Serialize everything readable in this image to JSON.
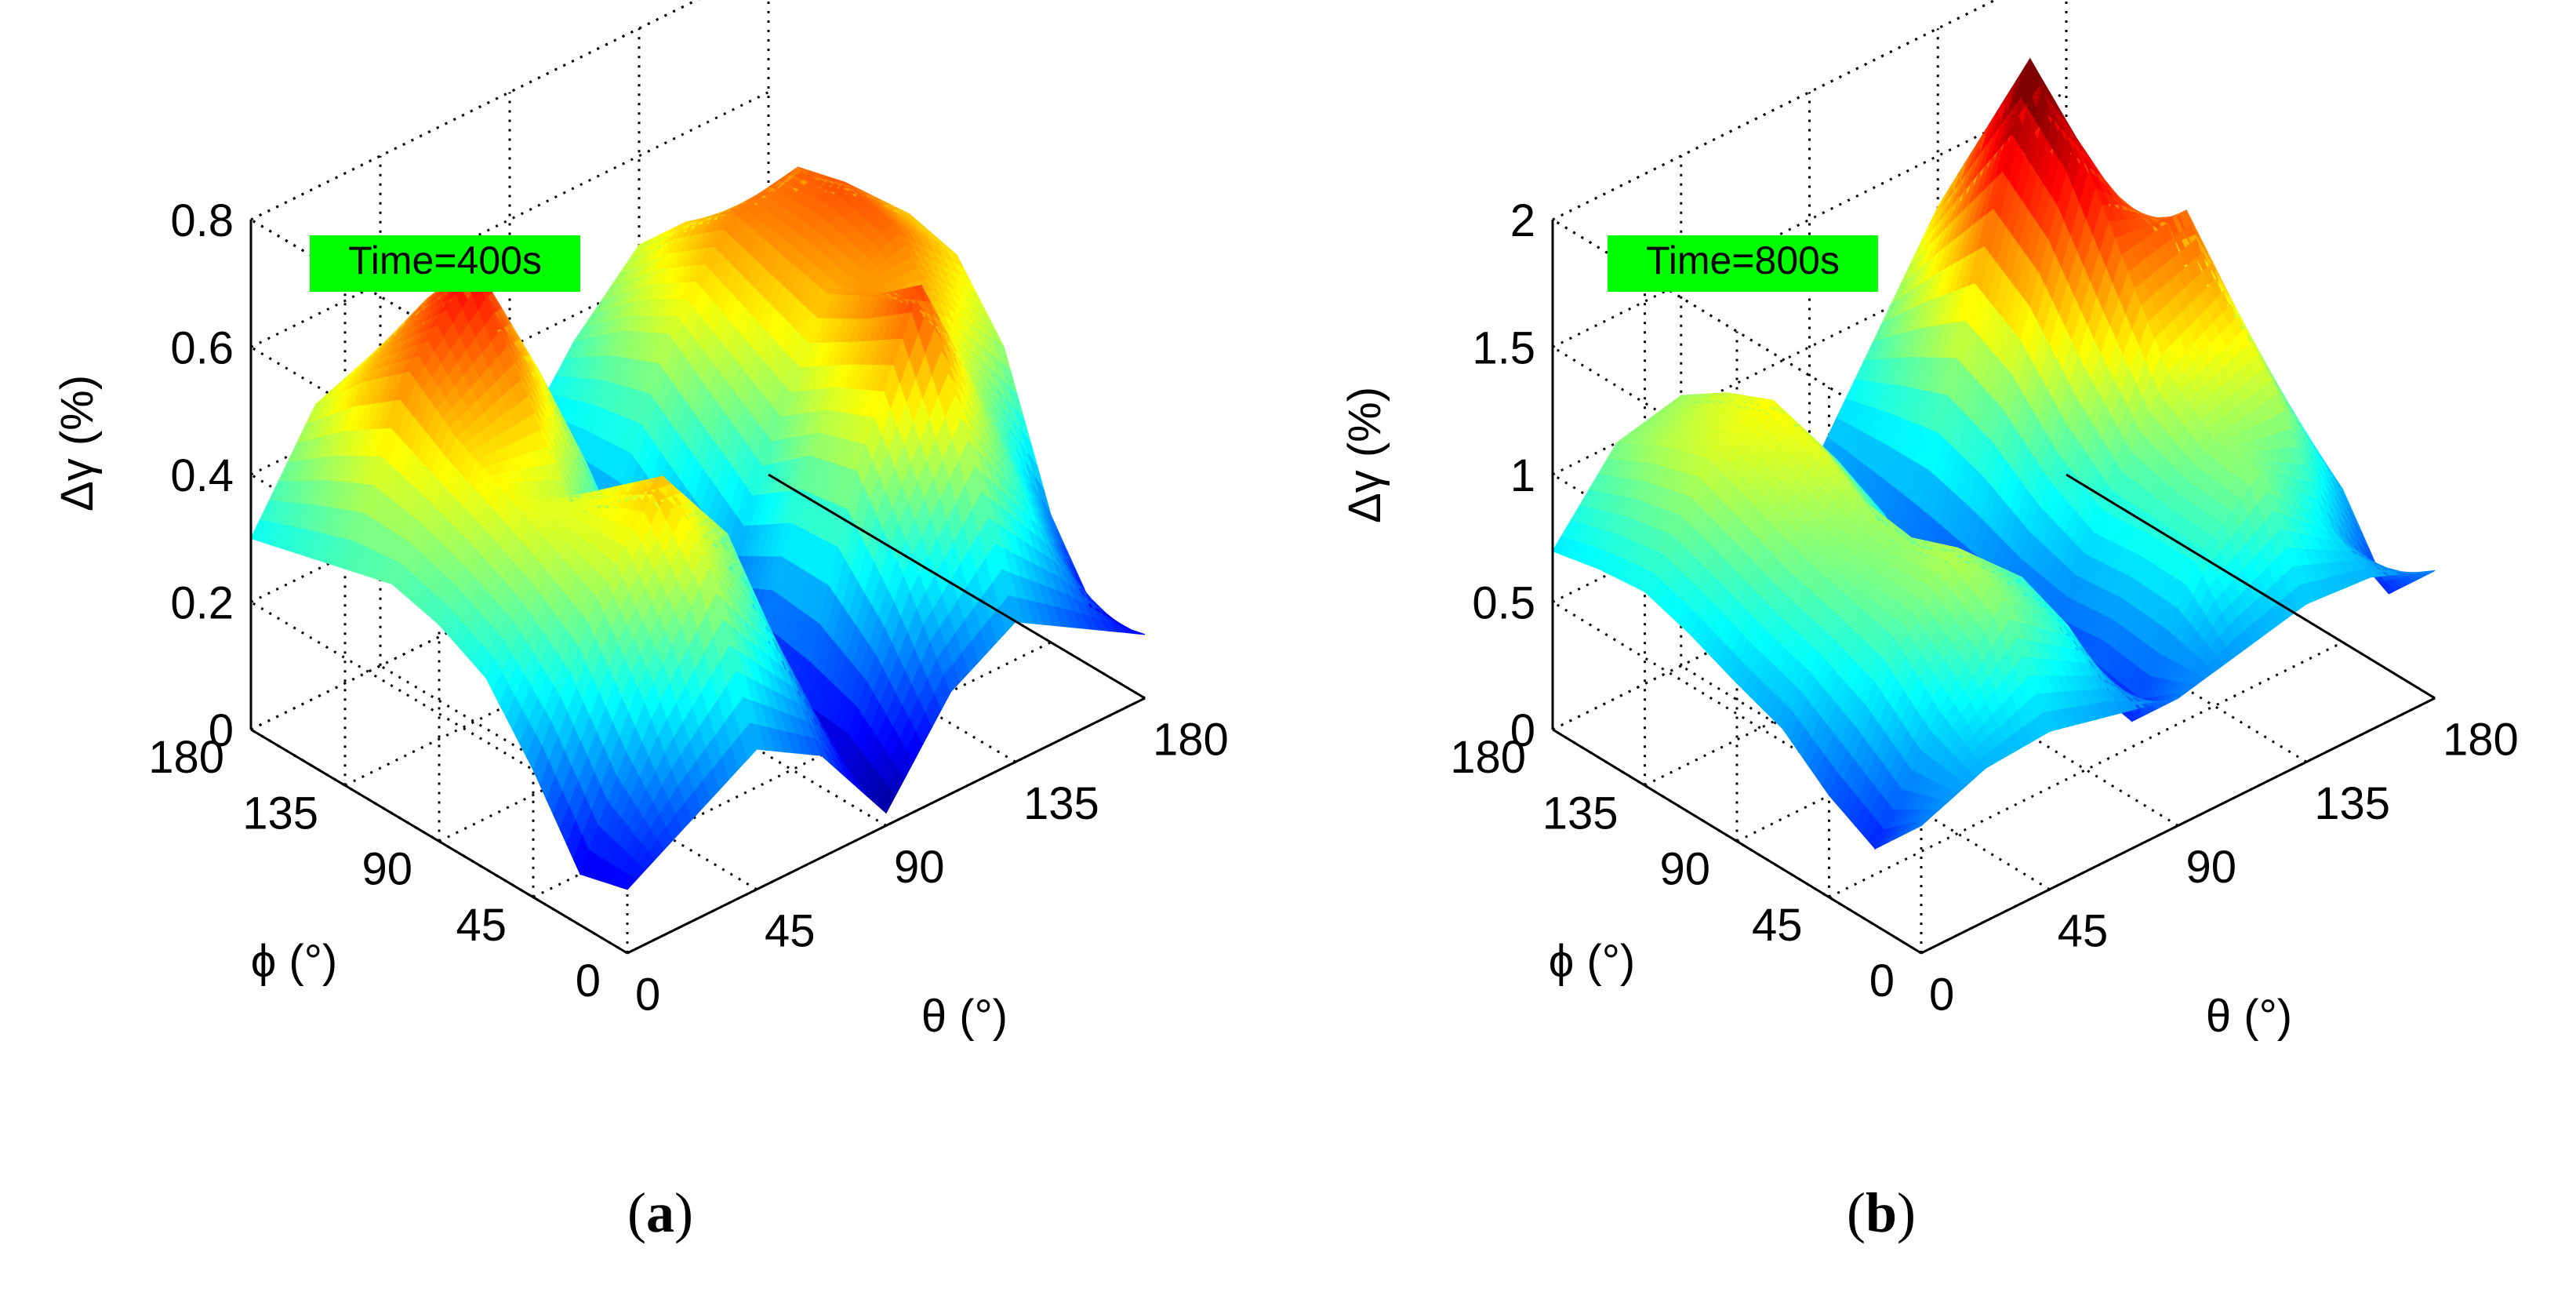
{
  "figure": {
    "colormap": "jet",
    "panels": [
      {
        "caption_letter": "a",
        "annotation": "Time=400s",
        "annotation_bg": "#00ff00",
        "zlabel": "Δγ (%)",
        "xlabel": "θ (°)",
        "ylabel": "ϕ (°)"
      },
      {
        "caption_letter": "b",
        "annotation": "Time=800s",
        "annotation_bg": "#00ff00",
        "zlabel": "Δγ (%)",
        "xlabel": "θ (°)",
        "ylabel": "ϕ (°)"
      }
    ]
  },
  "chart_data": [
    {
      "type": "surface",
      "title": "",
      "annotation": "Time=400s",
      "xlabel": "θ (°)",
      "ylabel": "ϕ (°)",
      "zlabel": "Δγ (%)",
      "xlim": [
        0,
        180
      ],
      "ylim": [
        0,
        180
      ],
      "zlim": [
        0,
        0.8
      ],
      "xticks": [
        0,
        45,
        90,
        135,
        180
      ],
      "yticks": [
        0,
        45,
        90,
        135,
        180
      ],
      "zticks": [
        0,
        0.2,
        0.4,
        0.6,
        0.8
      ],
      "xtick_labels": [
        "0",
        "45",
        "90",
        "135",
        "180"
      ],
      "ytick_labels": [
        "0",
        "45",
        "90",
        "135",
        "180"
      ],
      "ztick_labels": [
        "0",
        "0.2",
        "0.4",
        "0.6",
        "0.8"
      ],
      "grid": true,
      "colormap": "jet",
      "surface": {
        "theta": [
          0,
          22.5,
          45,
          67.5,
          90,
          112.5,
          135,
          157.5,
          180
        ],
        "phi": [
          0,
          22.5,
          45,
          67.5,
          90,
          112.5,
          135,
          157.5,
          180
        ],
        "z": [
          [
            0.1,
            0.16,
            0.22,
            0.16,
            0.02,
            0.16,
            0.22,
            0.16,
            0.1
          ],
          [
            0.08,
            0.3,
            0.46,
            0.3,
            0.06,
            0.3,
            0.46,
            0.3,
            0.08
          ],
          [
            0.2,
            0.42,
            0.56,
            0.42,
            0.05,
            0.42,
            0.66,
            0.42,
            0.2
          ],
          [
            0.3,
            0.46,
            0.5,
            0.32,
            0.08,
            0.4,
            0.6,
            0.54,
            0.42
          ],
          [
            0.34,
            0.5,
            0.44,
            0.22,
            0.06,
            0.34,
            0.56,
            0.62,
            0.52
          ],
          [
            0.36,
            0.54,
            0.58,
            0.4,
            0.12,
            0.4,
            0.58,
            0.64,
            0.54
          ],
          [
            0.34,
            0.6,
            0.72,
            0.5,
            0.18,
            0.46,
            0.6,
            0.62,
            0.48
          ],
          [
            0.32,
            0.54,
            0.62,
            0.44,
            0.2,
            0.42,
            0.54,
            0.5,
            0.38
          ],
          [
            0.3,
            0.46,
            0.5,
            0.36,
            0.22,
            0.36,
            0.46,
            0.4,
            0.3
          ]
        ]
      }
    },
    {
      "type": "surface",
      "title": "",
      "annotation": "Time=800s",
      "xlabel": "θ (°)",
      "ylabel": "ϕ (°)",
      "zlabel": "Δγ (%)",
      "xlim": [
        0,
        180
      ],
      "ylim": [
        0,
        180
      ],
      "zlim": [
        0,
        2
      ],
      "xticks": [
        0,
        45,
        90,
        135,
        180
      ],
      "yticks": [
        0,
        45,
        90,
        135,
        180
      ],
      "zticks": [
        0,
        0.5,
        1,
        1.5,
        2
      ],
      "xtick_labels": [
        "0",
        "45",
        "90",
        "135",
        "180"
      ],
      "ytick_labels": [
        "0",
        "45",
        "90",
        "135",
        "180"
      ],
      "ztick_labels": [
        "0",
        "0.5",
        "1",
        "1.5",
        "2"
      ],
      "grid": true,
      "colormap": "jet",
      "surface": {
        "theta": [
          0,
          22.5,
          45,
          67.5,
          90,
          112.5,
          135,
          157.5,
          180
        ],
        "phi": [
          0,
          22.5,
          45,
          67.5,
          90,
          112.5,
          135,
          157.5,
          180
        ],
        "z": [
          [
            0.5,
            0.6,
            0.62,
            0.56,
            0.5,
            0.56,
            0.62,
            0.6,
            0.5
          ],
          [
            0.3,
            0.72,
            1.02,
            0.8,
            0.3,
            0.8,
            1.02,
            0.72,
            0.3
          ],
          [
            0.4,
            0.9,
            1.12,
            0.88,
            0.34,
            0.8,
            1.05,
            1.1,
            0.6
          ],
          [
            0.55,
            0.95,
            1.05,
            0.7,
            0.32,
            0.78,
            1.2,
            1.35,
            0.75
          ],
          [
            0.62,
            1.0,
            1.08,
            0.62,
            0.3,
            0.9,
            1.55,
            1.6,
            0.8
          ],
          [
            0.7,
            1.08,
            1.2,
            0.8,
            0.28,
            1.1,
            1.9,
            1.4,
            0.72
          ],
          [
            0.76,
            1.16,
            1.26,
            0.9,
            0.3,
            1.2,
            2.1,
            1.2,
            0.66
          ],
          [
            0.74,
            1.1,
            1.18,
            0.86,
            0.4,
            1.06,
            1.7,
            1.0,
            0.62
          ],
          [
            0.7,
            1.0,
            1.06,
            0.8,
            0.5,
            0.9,
            1.3,
            0.86,
            0.6
          ]
        ]
      }
    }
  ]
}
